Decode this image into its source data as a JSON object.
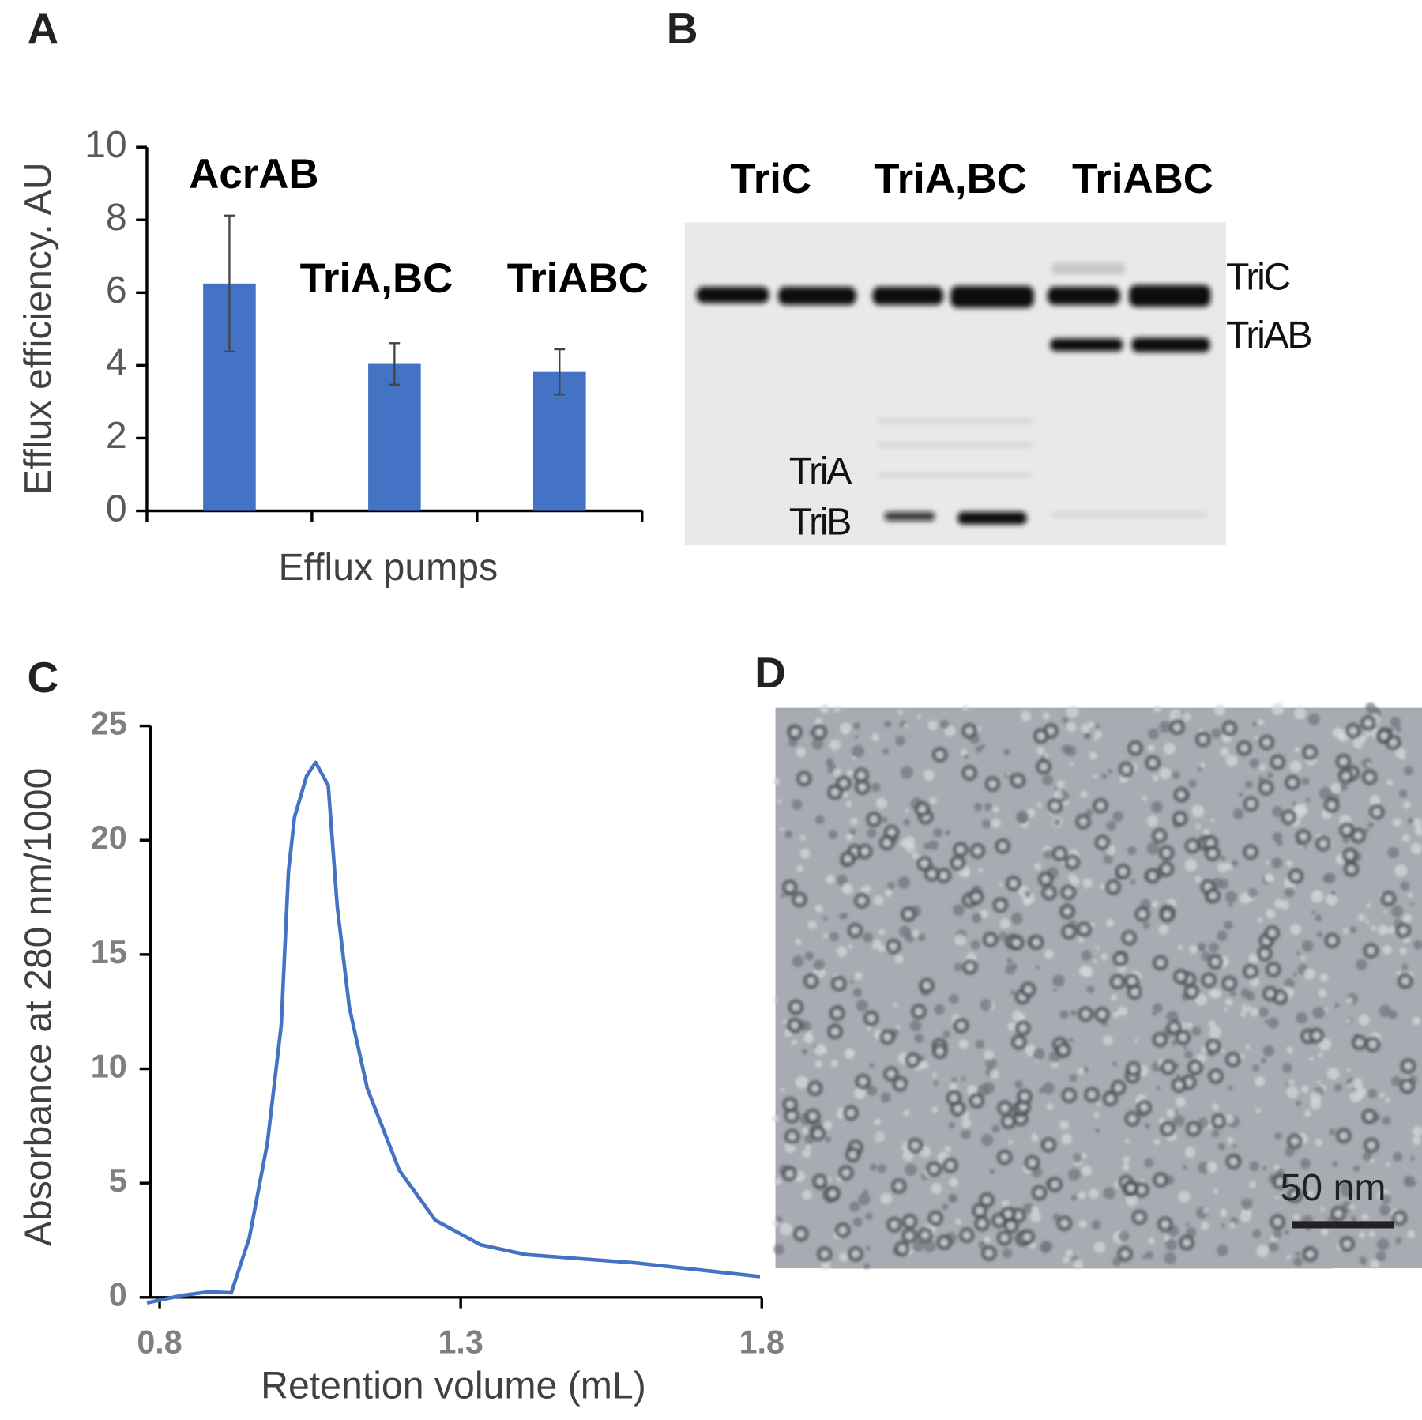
{
  "chart_data": [
    {
      "type": "bar",
      "panel_label": "A",
      "categories": [
        "AcrAB",
        "TriA,BC",
        "TriABC"
      ],
      "values": [
        6.25,
        4.04,
        3.82
      ],
      "errors": [
        1.87,
        0.57,
        0.62
      ],
      "color": "#4472c4",
      "ylim": [
        0,
        10
      ],
      "yticks": [
        0,
        2,
        4,
        6,
        8,
        10
      ],
      "xlabel": "Efflux pumps",
      "ylabel": "Efflux efficiency. AU"
    },
    {
      "type": "line",
      "panel_label": "C",
      "x": [
        0.779,
        0.836,
        0.881,
        0.919,
        0.949,
        0.979,
        1.002,
        1.014,
        1.024,
        1.044,
        1.059,
        1.08,
        1.095,
        1.115,
        1.145,
        1.198,
        1.258,
        1.333,
        1.408,
        1.589,
        1.797
      ],
      "values": [
        -0.24,
        0.08,
        0.24,
        0.2,
        2.6,
        6.75,
        11.9,
        18.65,
        21.0,
        22.8,
        23.4,
        22.4,
        17.1,
        12.7,
        9.13,
        5.56,
        3.37,
        2.3,
        1.87,
        1.51,
        0.91
      ],
      "color": "#4472c4",
      "xlim": [
        0.8,
        1.8
      ],
      "xticks": [
        0.8,
        1.3,
        1.8
      ],
      "ylim": [
        0,
        25
      ],
      "yticks": [
        0,
        5,
        10,
        15,
        20,
        25
      ],
      "xlabel": "Retention volume (mL)",
      "ylabel": "Absorbance at 280 nm/1000"
    }
  ],
  "gel": {
    "panel_label": "B",
    "lanes": [
      "TriC",
      "TriA,BC",
      "TriABC"
    ],
    "band_labels": [
      "TriC",
      "TriAB"
    ],
    "low_band_labels": [
      "TriA",
      "TriB"
    ]
  },
  "micrograph": {
    "panel_label": "D",
    "scale_bar": "50 nm"
  }
}
